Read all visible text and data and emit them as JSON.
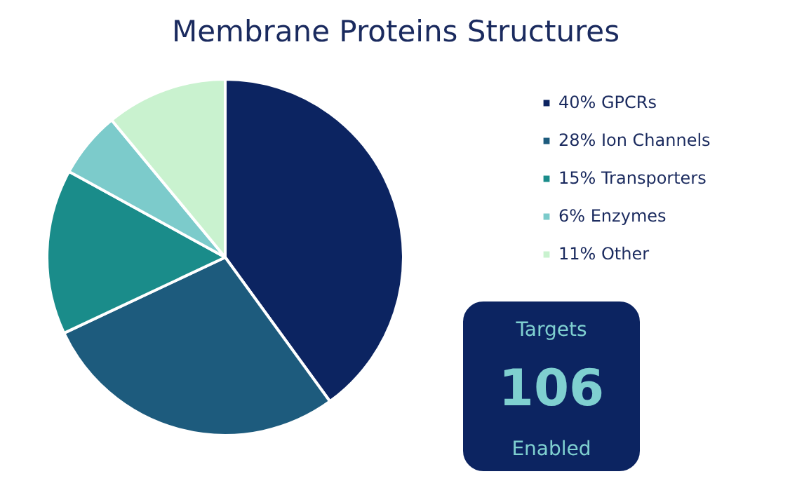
{
  "chart_data": [
    {
      "type": "pie",
      "title": "Membrane Proteins Structures",
      "categories": [
        "40% GPCRs",
        "28% Ion Channels",
        "15% Transporters",
        "6% Enzymes",
        "11% Other"
      ],
      "values": [
        40,
        28,
        15,
        6,
        11
      ],
      "colors": [
        "#0c2461",
        "#1d5b7d",
        "#1a8c8a",
        "#7ccbcb",
        "#c9f2cf"
      ],
      "legend": "right"
    },
    {
      "type": "other",
      "annotations": [
        "Targets",
        "106",
        "Enabled"
      ]
    }
  ]
}
